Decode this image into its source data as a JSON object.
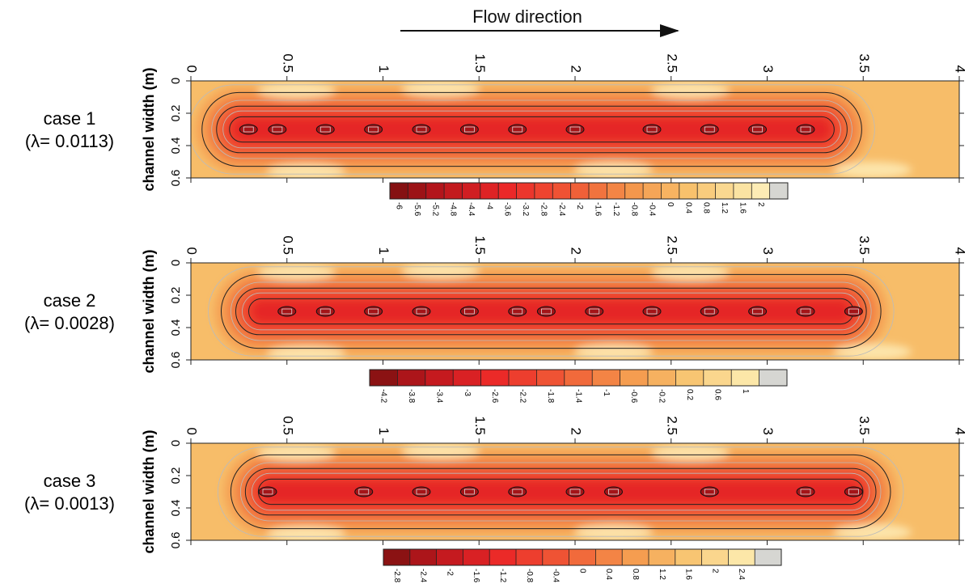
{
  "flow_label": "Flow direction",
  "chart_data": [
    {
      "type": "heatmap",
      "case_label": "case 1",
      "lambda_label": "(λ= 0.0113)",
      "ylabel": "channel width (m)",
      "x_ticks": [
        "0",
        "0.5",
        "1",
        "1.5",
        "2",
        "2.5",
        "3",
        "3.5",
        "4"
      ],
      "y_ticks": [
        "0",
        "0.2",
        "0.4",
        "0.6"
      ],
      "xlim": [
        0,
        4
      ],
      "ylim": [
        0,
        0.6
      ],
      "core_y": 0.3,
      "core_extent_x": [
        0.1,
        3.45
      ],
      "depth_min": -6,
      "colorbar_ticks": [
        "-6",
        "-5.6",
        "-5.2",
        "-4.8",
        "-4.4",
        "-4",
        "-3.6",
        "-3.2",
        "-2.8",
        "-2.4",
        "-2",
        "-1.6",
        "-1.2",
        "-0.8",
        "-0.4",
        "0",
        "0.4",
        "0.8",
        "1.2",
        "1.6",
        "2"
      ],
      "colorbar_range": [
        -6,
        2.3
      ],
      "core_spots_x": [
        0.3,
        0.45,
        0.7,
        0.95,
        1.2,
        1.45,
        1.7,
        2.0,
        2.4,
        2.7,
        2.95,
        3.2
      ]
    },
    {
      "type": "heatmap",
      "case_label": "case 2",
      "lambda_label": "(λ= 0.0028)",
      "ylabel": "channel width (m)",
      "x_ticks": [
        "0",
        "0.5",
        "1",
        "1.5",
        "2",
        "2.5",
        "3",
        "3.5",
        "4"
      ],
      "y_ticks": [
        "0",
        "0.2",
        "0.4",
        "0.6"
      ],
      "xlim": [
        0,
        4
      ],
      "ylim": [
        0,
        0.6
      ],
      "core_y": 0.3,
      "core_extent_x": [
        0.2,
        3.55
      ],
      "depth_min": -4.2,
      "colorbar_ticks": [
        "-4.2",
        "-3.8",
        "-3.4",
        "-3",
        "-2.6",
        "-2.2",
        "-1.8",
        "-1.4",
        "-1",
        "-0.6",
        "-0.2",
        "0.2",
        "0.6",
        "1"
      ],
      "colorbar_range": [
        -4.2,
        1.4
      ],
      "core_spots_x": [
        0.5,
        0.7,
        0.95,
        1.2,
        1.45,
        1.7,
        1.85,
        2.1,
        2.4,
        2.7,
        2.95,
        3.2,
        3.45
      ]
    },
    {
      "type": "heatmap",
      "case_label": "case 3",
      "lambda_label": "(λ= 0.0013)",
      "ylabel": "channel width (m)",
      "x_ticks": [
        "0",
        "0.5",
        "1",
        "1.5",
        "2",
        "2.5",
        "3",
        "3.5",
        "4"
      ],
      "y_ticks": [
        "0",
        "0.2",
        "0.4",
        "0.6"
      ],
      "xlim": [
        0,
        4
      ],
      "ylim": [
        0,
        0.6
      ],
      "core_y": 0.3,
      "core_extent_x": [
        0.25,
        3.6
      ],
      "depth_min": -2.8,
      "colorbar_ticks": [
        "-2.8",
        "-2.4",
        "-2",
        "-1.6",
        "-1.2",
        "-0.8",
        "-0.4",
        "0",
        "0.4",
        "0.8",
        "1.2",
        "1.6",
        "2",
        "2.4"
      ],
      "colorbar_range": [
        -2.8,
        2.6
      ],
      "core_spots_x": [
        0.4,
        0.9,
        1.2,
        1.45,
        1.7,
        2.0,
        2.2,
        2.7,
        3.2,
        3.45
      ]
    }
  ]
}
